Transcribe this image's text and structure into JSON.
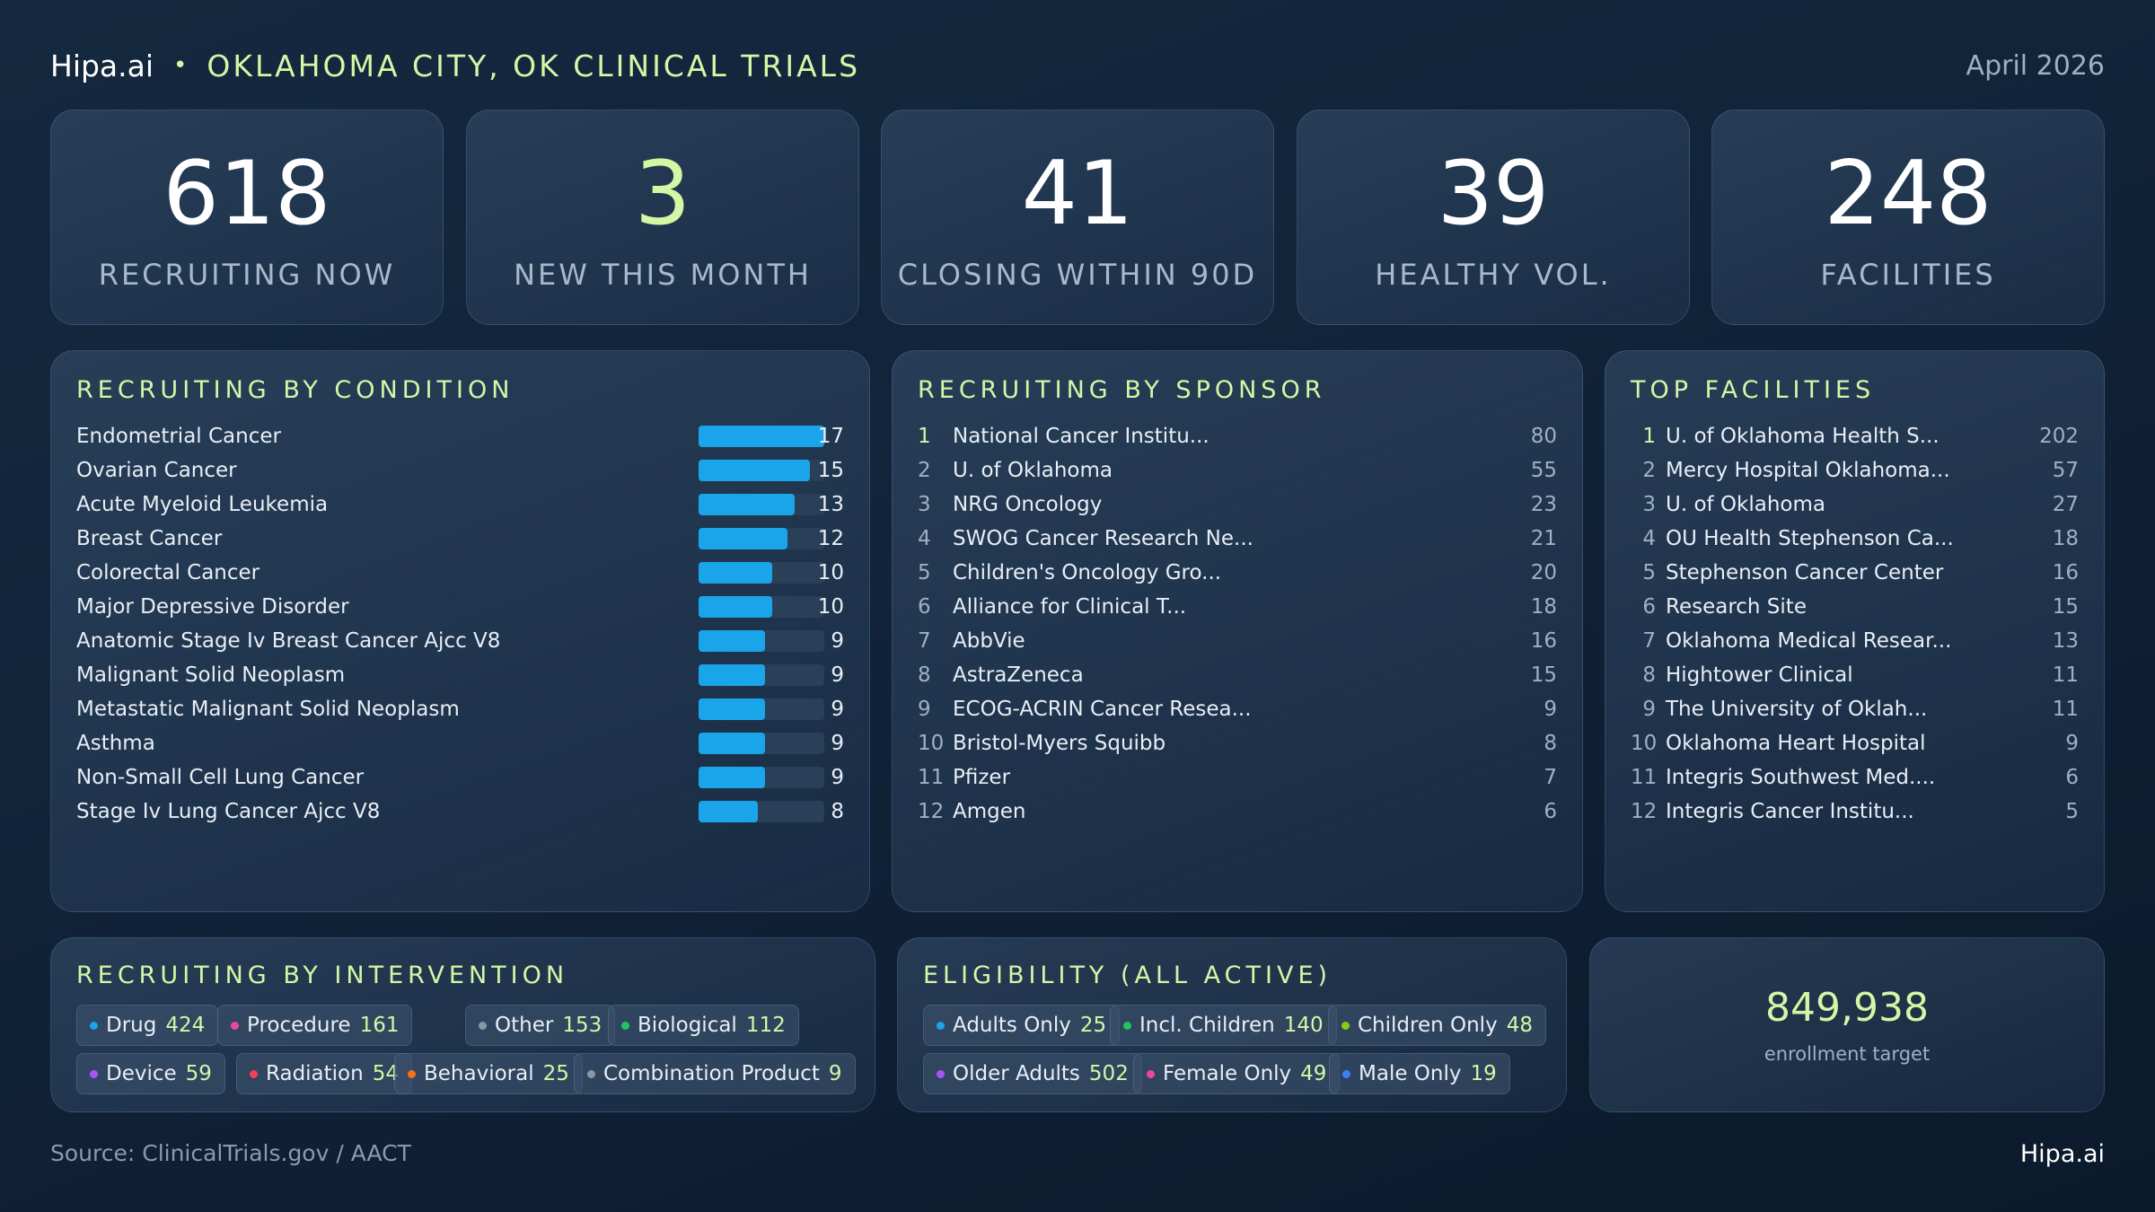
{
  "header": {
    "brand": "Hipa.ai",
    "separator": "•",
    "title": "OKLAHOMA CITY, OK CLINICAL TRIALS",
    "date": "April 2026"
  },
  "kpis": [
    {
      "value": "618",
      "label": "RECRUITING NOW"
    },
    {
      "value": "3",
      "label": "NEW THIS MONTH"
    },
    {
      "value": "41",
      "label": "CLOSING WITHIN 90D"
    },
    {
      "value": "39",
      "label": "HEALTHY VOL."
    },
    {
      "value": "248",
      "label": "FACILITIES"
    }
  ],
  "condition": {
    "title": "RECRUITING BY CONDITION",
    "bar_max": 17,
    "bar_color": "#1aa4ea",
    "items": [
      {
        "label": "Endometrial Cancer",
        "count": 17
      },
      {
        "label": "Ovarian Cancer",
        "count": 15
      },
      {
        "label": "Acute Myeloid Leukemia",
        "count": 13
      },
      {
        "label": "Breast Cancer",
        "count": 12
      },
      {
        "label": "Colorectal Cancer",
        "count": 10
      },
      {
        "label": "Major Depressive Disorder",
        "count": 10
      },
      {
        "label": "Anatomic Stage Iv Breast Cancer Ajcc V8",
        "count": 9
      },
      {
        "label": "Malignant Solid Neoplasm",
        "count": 9
      },
      {
        "label": "Metastatic Malignant Solid Neoplasm",
        "count": 9
      },
      {
        "label": "Asthma",
        "count": 9
      },
      {
        "label": "Non-Small Cell Lung Cancer",
        "count": 9
      },
      {
        "label": "Stage Iv Lung Cancer Ajcc V8",
        "count": 8
      }
    ]
  },
  "sponsor": {
    "title": "RECRUITING BY SPONSOR",
    "items": [
      {
        "rank": "1",
        "label": "National Cancer Institu...",
        "count": "80"
      },
      {
        "rank": "2",
        "label": "U. of Oklahoma",
        "count": "55"
      },
      {
        "rank": "3",
        "label": "NRG Oncology",
        "count": "23"
      },
      {
        "rank": "4",
        "label": "SWOG Cancer Research Ne...",
        "count": "21"
      },
      {
        "rank": "5",
        "label": "Children's Oncology Gro...",
        "count": "20"
      },
      {
        "rank": "6",
        "label": "Alliance for Clinical T...",
        "count": "18"
      },
      {
        "rank": "7",
        "label": "AbbVie",
        "count": "16"
      },
      {
        "rank": "8",
        "label": "AstraZeneca",
        "count": "15"
      },
      {
        "rank": "9",
        "label": "ECOG-ACRIN Cancer Resea...",
        "count": "9"
      },
      {
        "rank": "10",
        "label": "Bristol-Myers Squibb",
        "count": "8"
      },
      {
        "rank": "11",
        "label": "Pfizer",
        "count": "7"
      },
      {
        "rank": "12",
        "label": "Amgen",
        "count": "6"
      }
    ]
  },
  "facilities": {
    "title": "TOP FACILITIES",
    "items": [
      {
        "rank": "1",
        "label": "U. of Oklahoma Health S...",
        "count": "202"
      },
      {
        "rank": "2",
        "label": "Mercy Hospital Oklahoma...",
        "count": "57"
      },
      {
        "rank": "3",
        "label": "U. of Oklahoma",
        "count": "27"
      },
      {
        "rank": "4",
        "label": "OU Health Stephenson Ca...",
        "count": "18"
      },
      {
        "rank": "5",
        "label": "Stephenson Cancer Center",
        "count": "16"
      },
      {
        "rank": "6",
        "label": "Research Site",
        "count": "15"
      },
      {
        "rank": "7",
        "label": "Oklahoma Medical Resear...",
        "count": "13"
      },
      {
        "rank": "8",
        "label": "Hightower Clinical",
        "count": "11"
      },
      {
        "rank": "9",
        "label": "The University of Oklah...",
        "count": "11"
      },
      {
        "rank": "10",
        "label": "Oklahoma Heart Hospital",
        "count": "9"
      },
      {
        "rank": "11",
        "label": "Integris Southwest Med....",
        "count": "6"
      },
      {
        "rank": "12",
        "label": "Integris Cancer Institu...",
        "count": "5"
      }
    ]
  },
  "intervention": {
    "title": "RECRUITING BY INTERVENTION",
    "items": [
      {
        "label": "Drug",
        "value": "424",
        "color": "#1aa4ea"
      },
      {
        "label": "Procedure",
        "value": "161",
        "color": "#ec4899"
      },
      {
        "label": "Other",
        "value": "153",
        "color": "#8a96a6"
      },
      {
        "label": "Biological",
        "value": "112",
        "color": "#22c55e"
      },
      {
        "label": "Device",
        "value": "59",
        "color": "#a855f7"
      },
      {
        "label": "Radiation",
        "value": "54",
        "color": "#f43f5e"
      },
      {
        "label": "Behavioral",
        "value": "25",
        "color": "#f97316"
      },
      {
        "label": "Combination Product",
        "value": "9",
        "color": "#8a96a6"
      }
    ]
  },
  "eligibility": {
    "title": "ELIGIBILITY (ALL ACTIVE)",
    "items": [
      {
        "label": "Adults Only",
        "value": "25",
        "color": "#1aa4ea"
      },
      {
        "label": "Incl. Children",
        "value": "140",
        "color": "#22c55e"
      },
      {
        "label": "Children Only",
        "value": "48",
        "color": "#84cc16"
      },
      {
        "label": "Older Adults",
        "value": "502",
        "color": "#a855f7"
      },
      {
        "label": "Female Only",
        "value": "49",
        "color": "#ec4899"
      },
      {
        "label": "Male Only",
        "value": "19",
        "color": "#3b82f6"
      }
    ]
  },
  "enrollment": {
    "value": "849,938",
    "label": "enrollment target"
  },
  "footer": {
    "source": "Source: ClinicalTrials.gov / AACT",
    "brand": "Hipa.ai"
  }
}
